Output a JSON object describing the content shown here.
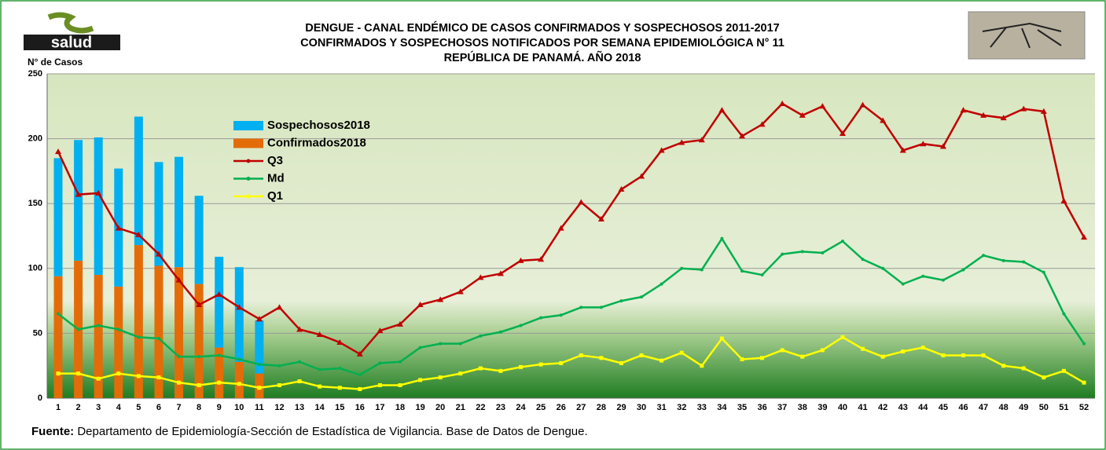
{
  "logo_text": "salud",
  "chart_data": {
    "type": "bar",
    "title": [
      "DENGUE - CANAL ENDÉMICO DE CASOS CONFIRMADOS Y SOSPECHOSOS 2011-2017",
      "CONFIRMADOS Y SOSPECHOSOS NOTIFICADOS POR SEMANA EPIDEMIOLÓGICA N° 11",
      "REPÚBLICA DE PANAMÁ. AÑO 2018"
    ],
    "y_label": "N° de Casos",
    "source_label": "Fuente:",
    "source_text": "Departamento de Epidemiología-Sección de Estadística de Vigilancia. Base de Datos de Dengue.",
    "categories": [
      "1",
      "2",
      "3",
      "4",
      "5",
      "6",
      "7",
      "8",
      "9",
      "10",
      "11",
      "12",
      "13",
      "14",
      "15",
      "16",
      "17",
      "18",
      "19",
      "20",
      "21",
      "22",
      "23",
      "24",
      "25",
      "26",
      "27",
      "28",
      "29",
      "30",
      "31",
      "32",
      "33",
      "34",
      "35",
      "36",
      "37",
      "38",
      "39",
      "40",
      "41",
      "42",
      "43",
      "44",
      "45",
      "46",
      "47",
      "48",
      "49",
      "50",
      "51",
      "52"
    ],
    "ylim": [
      0,
      250
    ],
    "yticks": [
      0,
      50,
      100,
      150,
      200,
      250
    ],
    "grid": true,
    "legend": "upper-left",
    "series": [
      {
        "name": "Sospechosos2018",
        "type": "bar",
        "stack": true,
        "color": "#00b0f0",
        "values": [
          91,
          93,
          106,
          91,
          99,
          80,
          85,
          68,
          70,
          73,
          41,
          null,
          null,
          null,
          null,
          null,
          null,
          null,
          null,
          null,
          null,
          null,
          null,
          null,
          null,
          null,
          null,
          null,
          null,
          null,
          null,
          null,
          null,
          null,
          null,
          null,
          null,
          null,
          null,
          null,
          null,
          null,
          null,
          null,
          null,
          null,
          null,
          null,
          null,
          null,
          null,
          null
        ]
      },
      {
        "name": "Confirmados2018",
        "type": "bar",
        "stack": true,
        "color": "#e36c09",
        "values": [
          94,
          106,
          95,
          86,
          118,
          102,
          101,
          88,
          39,
          28,
          19,
          null,
          null,
          null,
          null,
          null,
          null,
          null,
          null,
          null,
          null,
          null,
          null,
          null,
          null,
          null,
          null,
          null,
          null,
          null,
          null,
          null,
          null,
          null,
          null,
          null,
          null,
          null,
          null,
          null,
          null,
          null,
          null,
          null,
          null,
          null,
          null,
          null,
          null,
          null,
          null,
          null
        ]
      },
      {
        "name": "Q3",
        "type": "line",
        "marker": "triangle",
        "color": "#c00000",
        "values": [
          190,
          157,
          158,
          131,
          126,
          111,
          91,
          72,
          80,
          70,
          61,
          70,
          53,
          49,
          43,
          34,
          52,
          57,
          72,
          76,
          82,
          93,
          96,
          106,
          107,
          131,
          151,
          138,
          161,
          171,
          191,
          197,
          199,
          222,
          202,
          211,
          227,
          218,
          225,
          204,
          226,
          214,
          191,
          196,
          194,
          222,
          218,
          216,
          223,
          221,
          152,
          124
        ]
      },
      {
        "name": "Md",
        "type": "line",
        "marker": "circle",
        "color": "#00b050",
        "values": [
          65,
          53,
          56,
          53,
          47,
          46,
          32,
          32,
          33,
          30,
          26,
          25,
          28,
          22,
          23,
          18,
          27,
          28,
          39,
          42,
          42,
          48,
          51,
          56,
          62,
          64,
          70,
          70,
          75,
          78,
          88,
          100,
          99,
          123,
          98,
          95,
          111,
          113,
          112,
          121,
          107,
          100,
          88,
          94,
          91,
          99,
          110,
          106,
          105,
          97,
          65,
          42
        ]
      },
      {
        "name": "Q1",
        "type": "line",
        "marker": "square",
        "color": "#ffff00",
        "values": [
          19,
          19,
          15,
          19,
          17,
          16,
          12,
          10,
          12,
          11,
          8,
          10,
          13,
          9,
          8,
          7,
          10,
          10,
          14,
          16,
          19,
          23,
          21,
          24,
          26,
          27,
          33,
          31,
          27,
          33,
          29,
          35,
          25,
          46,
          30,
          31,
          37,
          32,
          37,
          47,
          38,
          32,
          36,
          39,
          33,
          33,
          33,
          25,
          23,
          16,
          21,
          12
        ]
      }
    ]
  }
}
